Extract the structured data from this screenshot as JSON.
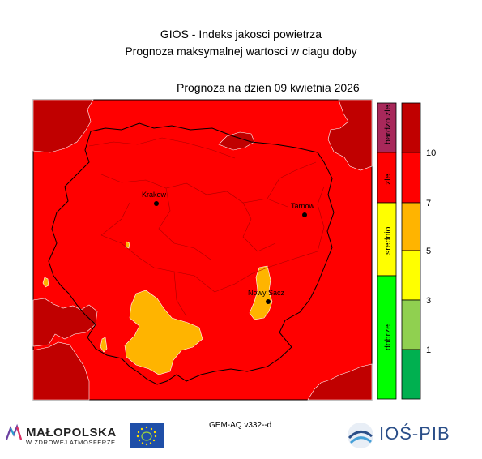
{
  "header": {
    "title_line1": "GIOS - Indeks jakosci powietrza",
    "title_line2": "Prognoza maksymalnej wartosci w ciagu doby",
    "date_title": "Prognoza na dzien  09 kwietnia 2026"
  },
  "map": {
    "dominant_level": "zle",
    "cities": [
      {
        "id": "krakow",
        "name": "Krakow"
      },
      {
        "id": "tarnow",
        "name": "Tarnow"
      },
      {
        "id": "nowy-sacz",
        "name": "Nowy Sacz"
      }
    ]
  },
  "legend": {
    "categories": [
      {
        "label": "bardzo zle",
        "color": "#a8285a"
      },
      {
        "label": "zle",
        "color": "#ff0000"
      },
      {
        "label": "srednio",
        "color": "#ffff00"
      },
      {
        "label": "dobrze",
        "color": "#00ff00"
      }
    ],
    "colorbar": [
      "#c00000",
      "#ff0000",
      "#ffb400",
      "#ffff00",
      "#90d050",
      "#00b050"
    ],
    "ticks": [
      "10",
      "7",
      "5",
      "3",
      "1"
    ]
  },
  "colors": {
    "zle": "#ff0000",
    "bardzo_zle": "#c00000",
    "srednio": "#ffb400"
  },
  "footer": {
    "model": "GEM-AQ v332--d",
    "malopolska_name": "MAŁOPOLSKA",
    "malopolska_sub": "W ZDROWEJ ATMOSFERZE",
    "ios_name": "IOŚ-PIB"
  }
}
